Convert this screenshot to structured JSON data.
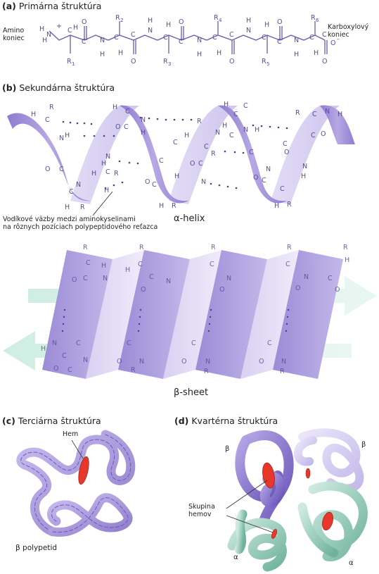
{
  "sections": {
    "a": {
      "letter": "(a)",
      "title": "Primárna štruktúra"
    },
    "b": {
      "letter": "(b)",
      "title": "Sekundárna štruktúra"
    },
    "c": {
      "letter": "(c)",
      "title": "Terciárna štruktúra"
    },
    "d": {
      "letter": "(d)",
      "title": "Kvartérna štruktúra"
    }
  },
  "primary": {
    "amino_label_1": "Amino",
    "amino_label_2": "koniec",
    "carboxyl_label_1": "Karboxylový",
    "carboxyl_label_2": "koniec",
    "r_groups": [
      "R1",
      "R2",
      "R3",
      "R4",
      "R5",
      "R6"
    ]
  },
  "secondary": {
    "hbond_label_1": "Vodíkové väzby medzi aminokyselinami",
    "hbond_label_2": "na rôznych pozíciach polypeptidového reťazca",
    "helix_label": "α-helix",
    "sheet_label": "β-sheet"
  },
  "tertiary": {
    "heme_label": "Hem",
    "polypeptide_label": "β polypetid"
  },
  "quaternary": {
    "heme_group_label_1": "Skupina",
    "heme_group_label_2": "hemov",
    "subunit_labels": [
      "β",
      "β",
      "α",
      "α"
    ]
  },
  "colors": {
    "purple": "#a99ad8",
    "purple_dark": "#7b68c0",
    "purple_light": "#d4ccef",
    "green": "#9ed2c0",
    "green_dark": "#6fb39c",
    "red": "#e8382c",
    "chem_text": "#5a4aa0"
  }
}
